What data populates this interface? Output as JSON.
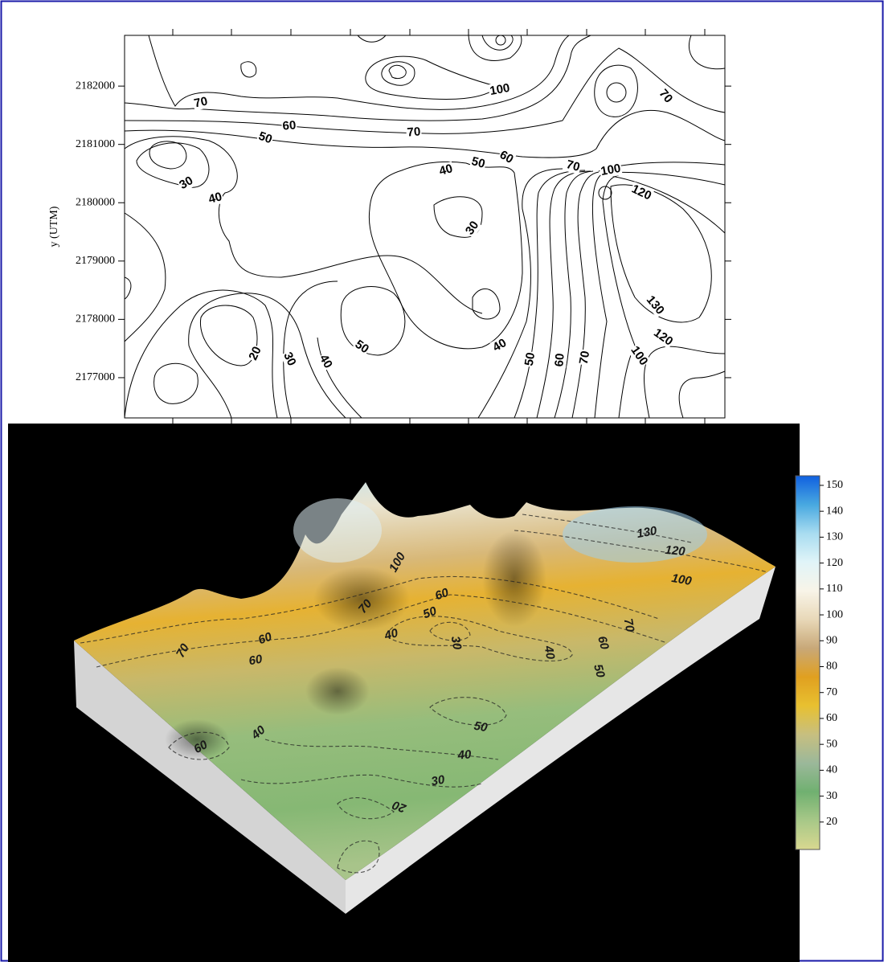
{
  "chart_data": [
    {
      "type": "contour",
      "ylabel": "y (UTM)",
      "ylim": [
        2176310,
        2182870
      ],
      "yticks": [
        2177000,
        2178000,
        2179000,
        2180000,
        2181000,
        2182000
      ],
      "contour_labels": [
        70,
        60,
        50,
        70,
        100,
        70,
        40,
        50,
        60,
        70,
        100,
        120,
        30,
        40,
        30,
        130,
        120,
        100,
        70,
        60,
        50,
        40,
        50,
        40,
        30,
        20
      ]
    },
    {
      "type": "surface",
      "colors": [
        "#d8d890",
        "#a8c888",
        "#70b070",
        "#9bb89a",
        "#c7bf80",
        "#e8c030",
        "#e0a020",
        "#c8a878",
        "#e8d8b8",
        "#f8f4e8",
        "#e0f4f8",
        "#a8dcf0",
        "#48a8e0",
        "#1060e0"
      ],
      "ylim": [
        9.4,
        153.7
      ],
      "yticks": [
        20,
        30,
        40,
        50,
        60,
        70,
        80,
        90,
        100,
        110,
        120,
        130,
        140,
        150
      ],
      "contour_labels": [
        130,
        120,
        100,
        100,
        70,
        60,
        50,
        40,
        30,
        40,
        70,
        60,
        50,
        60,
        70,
        60,
        50,
        40,
        30,
        20,
        40,
        60
      ]
    }
  ]
}
